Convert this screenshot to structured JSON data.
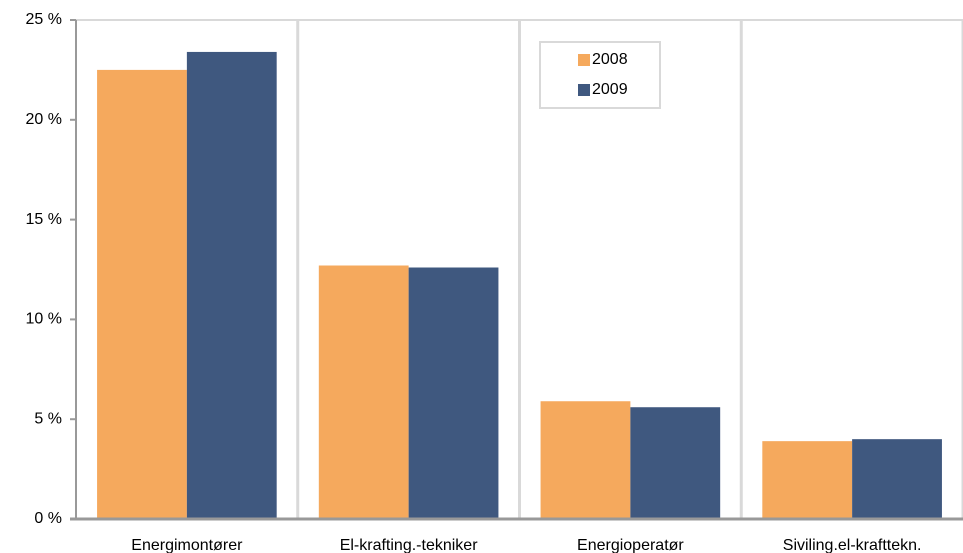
{
  "chart_data": {
    "type": "bar",
    "categories": [
      "Energimontører",
      "El-krafting.-tekniker",
      "Energioperatør",
      "Siviling.el-krafttekn."
    ],
    "series": [
      {
        "name": "2008",
        "color": "#f5a95d",
        "values": [
          22.5,
          12.7,
          5.9,
          3.9
        ]
      },
      {
        "name": "2009",
        "color": "#3f587f",
        "values": [
          23.4,
          12.6,
          5.6,
          4.0
        ]
      }
    ],
    "ylim": [
      0,
      25
    ],
    "yticks": [
      {
        "value": 0,
        "label": "0 %"
      },
      {
        "value": 5,
        "label": "5 %"
      },
      {
        "value": 10,
        "label": "10 %"
      },
      {
        "value": 15,
        "label": "15 %"
      },
      {
        "value": 20,
        "label": "20 %"
      },
      {
        "value": 25,
        "label": "25 %"
      }
    ],
    "grid": "vertical",
    "legend": "top"
  }
}
